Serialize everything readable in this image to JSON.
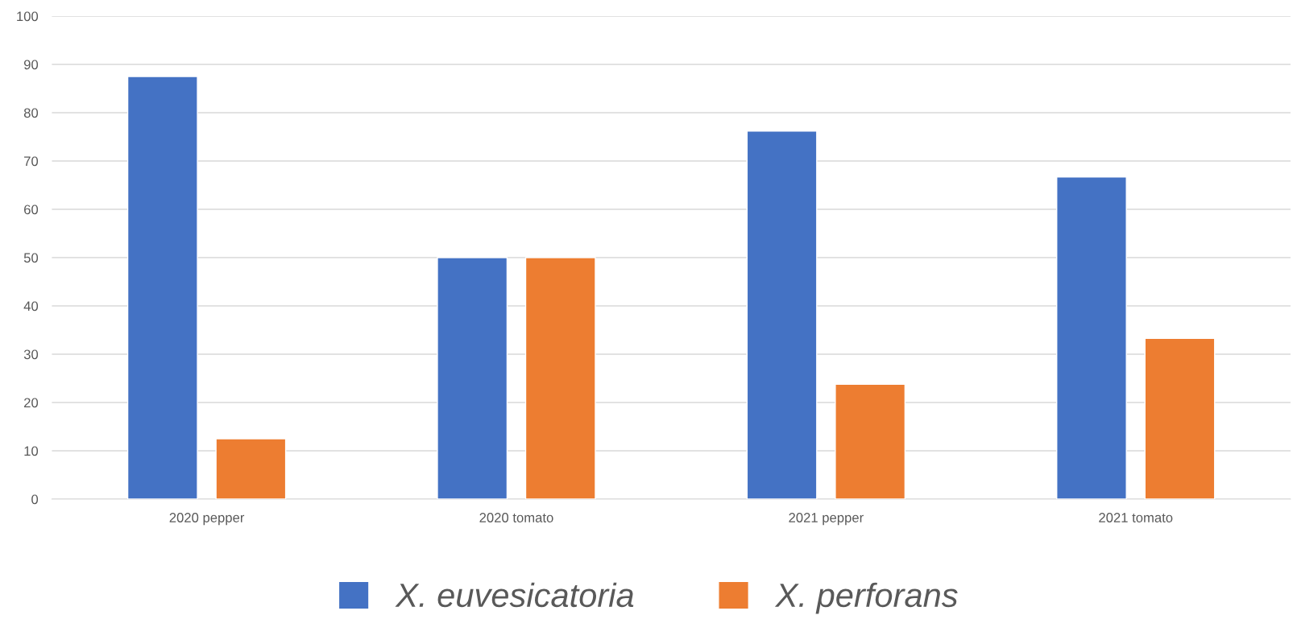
{
  "chart_data": {
    "type": "bar",
    "categories": [
      "2020 pepper",
      "2020 tomato",
      "2021 pepper",
      "2021 tomato"
    ],
    "series": [
      {
        "name": "X. euvesicatoria",
        "color": "#4472c4",
        "values": [
          87.5,
          50,
          76.2,
          66.7
        ]
      },
      {
        "name": "X. perforans",
        "color": "#ed7d31",
        "values": [
          12.5,
          50,
          23.8,
          33.3
        ]
      }
    ],
    "ylim": [
      0,
      100
    ],
    "yticks": [
      0,
      10,
      20,
      30,
      40,
      50,
      60,
      70,
      80,
      90,
      100
    ],
    "grid": "y",
    "legend": "bottom"
  }
}
